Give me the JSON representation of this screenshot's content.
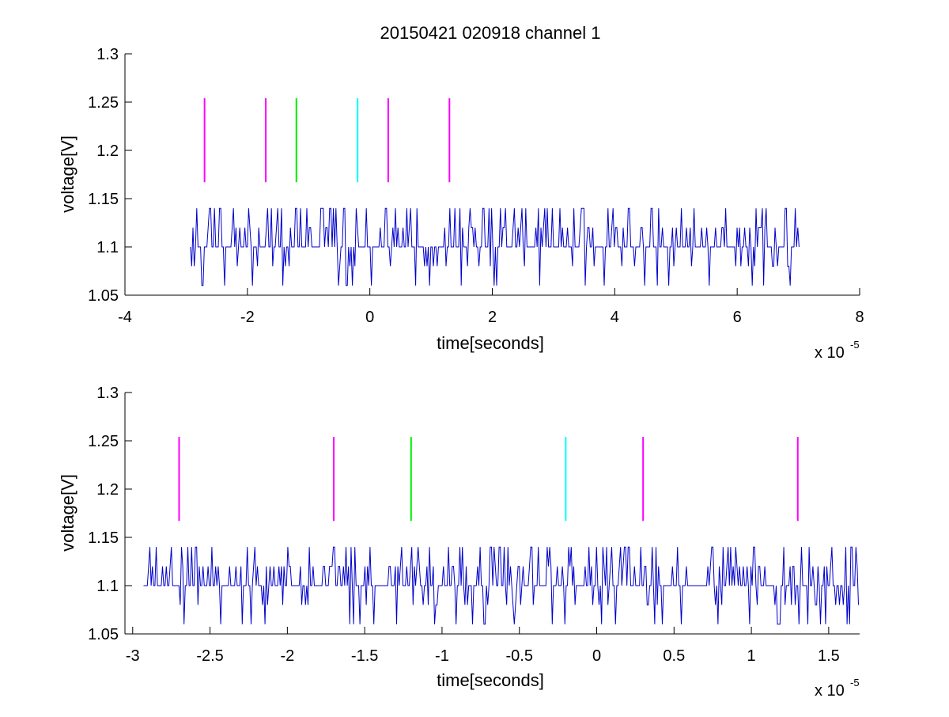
{
  "chart_data": [
    {
      "id": "top",
      "type": "line",
      "title": "20150421 020918 channel 1",
      "xlabel": "time[seconds]",
      "ylabel": "voltage[V]",
      "x_multiplier_label": "x 10",
      "x_multiplier_exponent": "-5",
      "xlim": [
        -4,
        8
      ],
      "ylim": [
        1.05,
        1.3
      ],
      "xticks": [
        -4,
        -2,
        0,
        2,
        4,
        6,
        8
      ],
      "xtick_labels": [
        "-4",
        "-2",
        "0",
        "2",
        "4",
        "6",
        "8"
      ],
      "yticks": [
        1.05,
        1.1,
        1.15,
        1.2,
        1.25,
        1.3
      ],
      "ytick_labels": [
        "1.05",
        "1.1",
        "1.15",
        "1.2",
        "1.25",
        "1.3"
      ],
      "grid": false,
      "legend": "none",
      "signal": {
        "color": "#0000cc",
        "x_start": -2.93,
        "x_end": 7.03,
        "baseline": 1.1,
        "levels": [
          1.06,
          1.08,
          1.1,
          1.12,
          1.14
        ],
        "noise_seed": 7
      },
      "markers": [
        {
          "x": -2.7,
          "y0": 1.167,
          "y1": 1.254,
          "color": "#ff00ff"
        },
        {
          "x": -1.7,
          "y0": 1.167,
          "y1": 1.254,
          "color": "#ff00ff"
        },
        {
          "x": -1.2,
          "y0": 1.167,
          "y1": 1.254,
          "color": "#00ee00"
        },
        {
          "x": -0.2,
          "y0": 1.167,
          "y1": 1.254,
          "color": "#00ffff"
        },
        {
          "x": 0.3,
          "y0": 1.167,
          "y1": 1.254,
          "color": "#ff00ff"
        },
        {
          "x": 1.3,
          "y0": 1.167,
          "y1": 1.254,
          "color": "#ff00ff"
        }
      ]
    },
    {
      "id": "bottom",
      "type": "line",
      "title": "",
      "xlabel": "time[seconds]",
      "ylabel": "voltage[V]",
      "x_multiplier_label": "x 10",
      "x_multiplier_exponent": "-5",
      "xlim": [
        -3.05,
        1.7
      ],
      "ylim": [
        1.05,
        1.3
      ],
      "xticks": [
        -3,
        -2.5,
        -2,
        -1.5,
        -1,
        -0.5,
        0,
        0.5,
        1,
        1.5
      ],
      "xtick_labels": [
        "-3",
        "-2.5",
        "-2",
        "-1.5",
        "-1",
        "-0.5",
        "0",
        "0.5",
        "1",
        "1.5"
      ],
      "yticks": [
        1.05,
        1.1,
        1.15,
        1.2,
        1.25,
        1.3
      ],
      "ytick_labels": [
        "1.05",
        "1.1",
        "1.15",
        "1.2",
        "1.25",
        "1.3"
      ],
      "grid": false,
      "legend": "none",
      "signal": {
        "color": "#0000cc",
        "x_start": -2.93,
        "x_end": 1.7,
        "baseline": 1.1,
        "levels": [
          1.06,
          1.08,
          1.1,
          1.12,
          1.14
        ],
        "noise_seed": 11
      },
      "markers": [
        {
          "x": -2.7,
          "y0": 1.167,
          "y1": 1.254,
          "color": "#ff00ff"
        },
        {
          "x": -1.7,
          "y0": 1.167,
          "y1": 1.254,
          "color": "#ff00ff"
        },
        {
          "x": -1.2,
          "y0": 1.167,
          "y1": 1.254,
          "color": "#00ee00"
        },
        {
          "x": -0.2,
          "y0": 1.167,
          "y1": 1.254,
          "color": "#00ffff"
        },
        {
          "x": 0.3,
          "y0": 1.167,
          "y1": 1.254,
          "color": "#ff00ff"
        },
        {
          "x": 1.3,
          "y0": 1.167,
          "y1": 1.254,
          "color": "#ff00ff"
        }
      ]
    }
  ]
}
